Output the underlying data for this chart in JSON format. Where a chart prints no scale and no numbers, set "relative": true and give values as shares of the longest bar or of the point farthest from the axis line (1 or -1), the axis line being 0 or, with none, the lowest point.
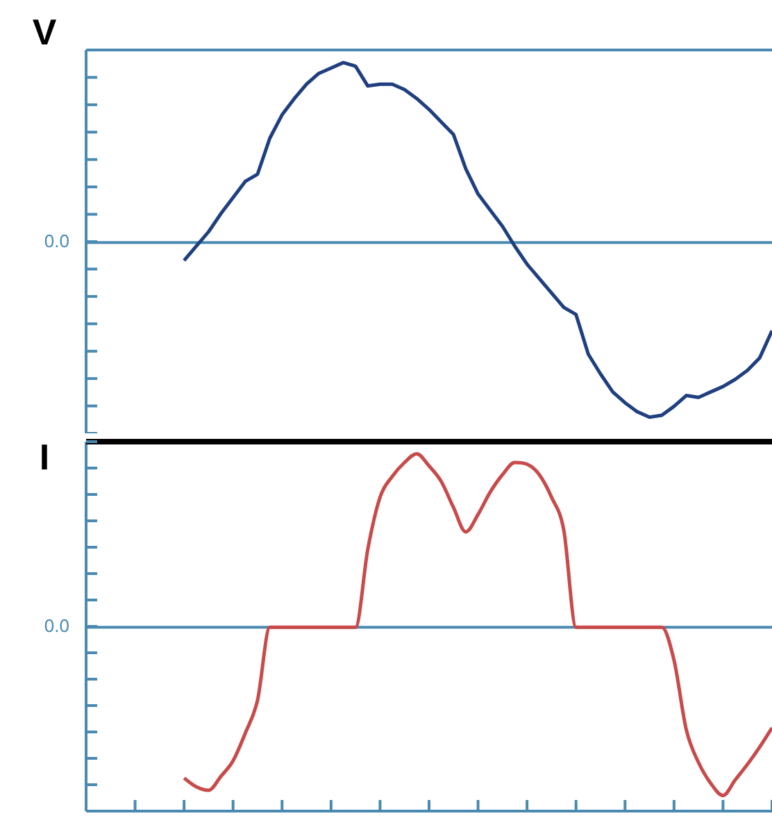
{
  "chart_data": [
    {
      "type": "line",
      "ylabel": "V",
      "relative": true,
      "legend": false,
      "tick_labels": false,
      "marker": "none",
      "line_style": "solid",
      "categories": [
        null,
        null,
        null,
        null,
        null,
        null,
        null,
        null,
        null,
        null,
        null,
        null,
        null,
        null,
        null,
        null,
        null,
        null,
        null,
        null,
        null,
        null,
        null,
        null,
        null,
        null,
        null,
        null,
        null,
        null,
        null,
        null,
        null,
        null,
        null,
        null,
        null,
        null,
        null,
        null,
        null,
        null,
        null,
        null,
        null,
        null,
        null,
        null,
        null,
        null,
        null,
        null,
        null,
        null,
        null,
        null,
        null
      ],
      "series": [
        {
          "color": "#1f3f80",
          "values": [
            null,
            null,
            null,
            null,
            null,
            null,
            null,
            null,
            -0.1,
            -0.02,
            0.06,
            0.16,
            0.25,
            0.34,
            0.38,
            0.58,
            0.71,
            0.8,
            0.88,
            0.94,
            0.97,
            1.0,
            0.98,
            0.87,
            0.88,
            0.88,
            0.85,
            0.8,
            0.74,
            0.67,
            0.6,
            0.41,
            0.27,
            0.18,
            0.09,
            -0.02,
            -0.12,
            -0.2,
            -0.28,
            -0.36,
            -0.4,
            -0.62,
            -0.73,
            -0.83,
            -0.89,
            -0.94,
            -0.97,
            -0.96,
            -0.91,
            -0.85,
            -0.86,
            -0.83,
            -0.8,
            -0.76,
            -0.71,
            -0.64,
            -0.49
          ]
        }
      ],
      "ref_lines": [
        {
          "axis": "y",
          "value": 0,
          "label": "0.0",
          "color": "#4a8ab0"
        }
      ]
    },
    {
      "type": "line",
      "ylabel": "I",
      "relative": true,
      "legend": false,
      "tick_labels": false,
      "marker": "none",
      "line_style": "solid",
      "categories": [
        null,
        null,
        null,
        null,
        null,
        null,
        null,
        null,
        null,
        null,
        null,
        null,
        null,
        null,
        null,
        null,
        null,
        null,
        null,
        null,
        null,
        null,
        null,
        null,
        null,
        null,
        null,
        null,
        null,
        null,
        null,
        null,
        null,
        null,
        null,
        null,
        null,
        null,
        null,
        null,
        null,
        null,
        null,
        null,
        null,
        null,
        null,
        null,
        null,
        null,
        null,
        null,
        null,
        null,
        null,
        null,
        null
      ],
      "series": [
        {
          "color": "#c84a4a",
          "values": [
            null,
            null,
            null,
            null,
            null,
            null,
            null,
            null,
            -0.87,
            -0.92,
            -0.94,
            -0.86,
            -0.77,
            -0.61,
            -0.42,
            0,
            0,
            0,
            0,
            0,
            0,
            0,
            0,
            0.45,
            0.75,
            0.87,
            0.95,
            1.0,
            0.93,
            0.84,
            0.69,
            0.55,
            0.65,
            0.78,
            0.88,
            0.95,
            0.94,
            0.88,
            0.75,
            0.56,
            0,
            0,
            0,
            0,
            0,
            0,
            0,
            0,
            -0.19,
            -0.59,
            -0.78,
            -0.9,
            -0.97,
            -0.88,
            -0.79,
            -0.69,
            -0.58
          ]
        }
      ],
      "ref_lines": [
        {
          "axis": "y",
          "value": 0,
          "label": "0.0",
          "color": "#4a8ab0"
        }
      ]
    }
  ]
}
